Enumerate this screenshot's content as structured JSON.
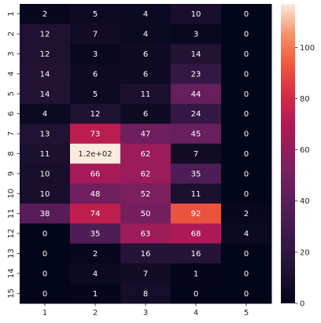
{
  "chart_data": {
    "type": "heatmap",
    "title": "",
    "xlabel": "",
    "ylabel": "",
    "x_categories": [
      "1",
      "2",
      "3",
      "4",
      "5"
    ],
    "y_categories": [
      "1",
      "2",
      "3",
      "4",
      "5",
      "6",
      "7",
      "8",
      "9",
      "10",
      "11",
      "12",
      "13",
      "14",
      "15"
    ],
    "values": [
      [
        2,
        5,
        4,
        10,
        0
      ],
      [
        12,
        7,
        4,
        3,
        0
      ],
      [
        12,
        3,
        6,
        14,
        0
      ],
      [
        14,
        6,
        6,
        23,
        0
      ],
      [
        14,
        5,
        11,
        44,
        0
      ],
      [
        4,
        12,
        6,
        24,
        0
      ],
      [
        13,
        73,
        47,
        45,
        0
      ],
      [
        11,
        117,
        62,
        7,
        0
      ],
      [
        10,
        66,
        62,
        35,
        0
      ],
      [
        10,
        48,
        52,
        11,
        0
      ],
      [
        38,
        74,
        50,
        92,
        2
      ],
      [
        0,
        35,
        63,
        68,
        4
      ],
      [
        0,
        2,
        16,
        16,
        0
      ],
      [
        0,
        4,
        7,
        1,
        0
      ],
      [
        0,
        1,
        8,
        0,
        0
      ]
    ],
    "cell_labels": [
      [
        "2",
        "5",
        "4",
        "10",
        "0"
      ],
      [
        "12",
        "7",
        "4",
        "3",
        "0"
      ],
      [
        "12",
        "3",
        "6",
        "14",
        "0"
      ],
      [
        "14",
        "6",
        "6",
        "23",
        "0"
      ],
      [
        "14",
        "5",
        "11",
        "44",
        "0"
      ],
      [
        "4",
        "12",
        "6",
        "24",
        "0"
      ],
      [
        "13",
        "73",
        "47",
        "45",
        "0"
      ],
      [
        "11",
        "1.2e+02",
        "62",
        "7",
        "0"
      ],
      [
        "10",
        "66",
        "62",
        "35",
        "0"
      ],
      [
        "10",
        "48",
        "52",
        "11",
        "0"
      ],
      [
        "38",
        "74",
        "50",
        "92",
        "2"
      ],
      [
        "0",
        "35",
        "63",
        "68",
        "4"
      ],
      [
        "0",
        "2",
        "16",
        "16",
        "0"
      ],
      [
        "0",
        "4",
        "7",
        "1",
        "0"
      ],
      [
        "0",
        "1",
        "8",
        "0",
        "0"
      ]
    ],
    "colormap": "rocket",
    "vmin": 0,
    "vmax": 117,
    "colorbar": {
      "ticks": [
        0,
        20,
        40,
        60,
        80,
        100
      ],
      "tick_labels": [
        "0",
        "20",
        "40",
        "60",
        "80",
        "100"
      ]
    },
    "grid": false
  }
}
